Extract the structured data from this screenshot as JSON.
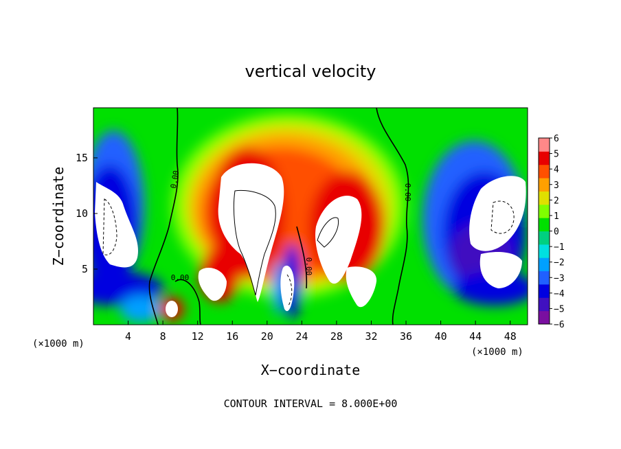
{
  "chart_data": {
    "type": "heatmap",
    "title": "vertical velocity",
    "xlabel": "X−coordinate",
    "ylabel": "Z−coordinate",
    "x_units": "(×1000 m)",
    "y_units": "(×1000 m)",
    "xlim": [
      0,
      50
    ],
    "ylim": [
      0,
      19.5
    ],
    "x_ticks": [
      "4",
      "8",
      "12",
      "16",
      "20",
      "24",
      "28",
      "32",
      "36",
      "40",
      "44",
      "48"
    ],
    "y_ticks": [
      "5",
      "10",
      "15"
    ],
    "colorbar": {
      "range": [
        -6,
        6
      ],
      "ticks": [
        "6",
        "5",
        "4",
        "3",
        "2",
        "1",
        "0",
        "−1",
        "−2",
        "−3",
        "−4",
        "−5",
        "−6"
      ],
      "colors": [
        "#7a0fa0",
        "#4010c0",
        "#0000e0",
        "#2060ff",
        "#00a0ff",
        "#00e0e0",
        "#00d080",
        "#00e000",
        "#80ff00",
        "#e0e000",
        "#ffa000",
        "#ff5000",
        "#e80000",
        "#ff8888"
      ]
    },
    "contour_labels": [
      "0.00",
      "0.00",
      "0.00",
      "0.00"
    ],
    "footer": "CONTOUR INTERVAL = 8.000E+00"
  }
}
